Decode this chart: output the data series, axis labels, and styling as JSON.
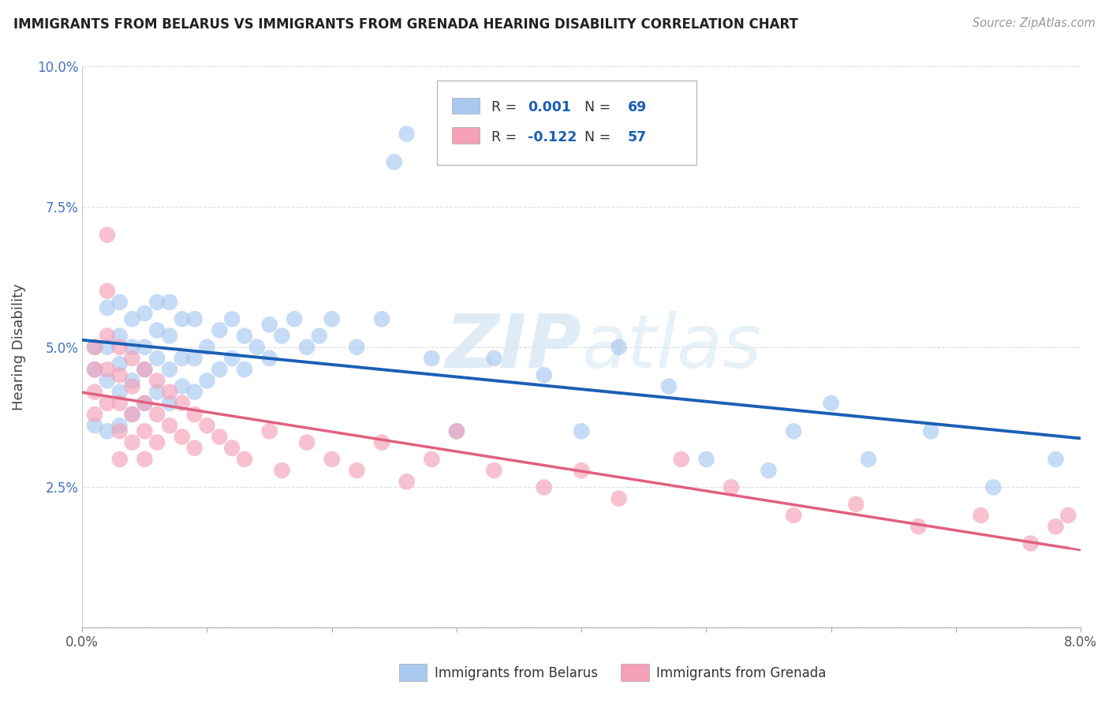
{
  "title": "IMMIGRANTS FROM BELARUS VS IMMIGRANTS FROM GRENADA HEARING DISABILITY CORRELATION CHART",
  "source": "Source: ZipAtlas.com",
  "ylabel": "Hearing Disability",
  "legend_label1": "Immigrants from Belarus",
  "legend_label2": "Immigrants from Grenada",
  "R1": 0.001,
  "N1": 69,
  "R2": -0.122,
  "N2": 57,
  "xlim": [
    0.0,
    0.08
  ],
  "ylim": [
    0.0,
    0.1
  ],
  "color_blue": "#A8C8F0",
  "color_pink": "#F4A0B8",
  "color_blue_line": "#1A5FB4",
  "color_pink_line": "#E06080",
  "watermark_zip": "ZIP",
  "watermark_atlas": "atlas",
  "blue_x": [
    0.001,
    0.001,
    0.001,
    0.002,
    0.002,
    0.002,
    0.002,
    0.003,
    0.003,
    0.003,
    0.003,
    0.003,
    0.004,
    0.004,
    0.004,
    0.004,
    0.005,
    0.005,
    0.005,
    0.005,
    0.006,
    0.006,
    0.006,
    0.006,
    0.007,
    0.007,
    0.007,
    0.007,
    0.008,
    0.008,
    0.008,
    0.009,
    0.009,
    0.009,
    0.01,
    0.01,
    0.011,
    0.011,
    0.012,
    0.012,
    0.013,
    0.013,
    0.014,
    0.015,
    0.015,
    0.016,
    0.017,
    0.018,
    0.019,
    0.02,
    0.022,
    0.024,
    0.025,
    0.026,
    0.028,
    0.03,
    0.033,
    0.037,
    0.04,
    0.043,
    0.047,
    0.05,
    0.055,
    0.057,
    0.06,
    0.063,
    0.068,
    0.073,
    0.078
  ],
  "blue_y": [
    0.036,
    0.046,
    0.05,
    0.035,
    0.044,
    0.05,
    0.057,
    0.036,
    0.042,
    0.047,
    0.052,
    0.058,
    0.038,
    0.044,
    0.05,
    0.055,
    0.04,
    0.046,
    0.05,
    0.056,
    0.042,
    0.048,
    0.053,
    0.058,
    0.04,
    0.046,
    0.052,
    0.058,
    0.043,
    0.048,
    0.055,
    0.042,
    0.048,
    0.055,
    0.044,
    0.05,
    0.046,
    0.053,
    0.048,
    0.055,
    0.046,
    0.052,
    0.05,
    0.048,
    0.054,
    0.052,
    0.055,
    0.05,
    0.052,
    0.055,
    0.05,
    0.055,
    0.083,
    0.088,
    0.048,
    0.035,
    0.048,
    0.045,
    0.035,
    0.05,
    0.043,
    0.03,
    0.028,
    0.035,
    0.04,
    0.03,
    0.035,
    0.025,
    0.03
  ],
  "pink_x": [
    0.001,
    0.001,
    0.001,
    0.001,
    0.002,
    0.002,
    0.002,
    0.002,
    0.002,
    0.003,
    0.003,
    0.003,
    0.003,
    0.003,
    0.004,
    0.004,
    0.004,
    0.004,
    0.005,
    0.005,
    0.005,
    0.005,
    0.006,
    0.006,
    0.006,
    0.007,
    0.007,
    0.008,
    0.008,
    0.009,
    0.009,
    0.01,
    0.011,
    0.012,
    0.013,
    0.015,
    0.016,
    0.018,
    0.02,
    0.022,
    0.024,
    0.026,
    0.028,
    0.03,
    0.033,
    0.037,
    0.04,
    0.043,
    0.048,
    0.052,
    0.057,
    0.062,
    0.067,
    0.072,
    0.076,
    0.078,
    0.079
  ],
  "pink_y": [
    0.05,
    0.046,
    0.042,
    0.038,
    0.06,
    0.052,
    0.046,
    0.04,
    0.07,
    0.05,
    0.045,
    0.04,
    0.035,
    0.03,
    0.048,
    0.043,
    0.038,
    0.033,
    0.046,
    0.04,
    0.035,
    0.03,
    0.044,
    0.038,
    0.033,
    0.042,
    0.036,
    0.04,
    0.034,
    0.038,
    0.032,
    0.036,
    0.034,
    0.032,
    0.03,
    0.035,
    0.028,
    0.033,
    0.03,
    0.028,
    0.033,
    0.026,
    0.03,
    0.035,
    0.028,
    0.025,
    0.028,
    0.023,
    0.03,
    0.025,
    0.02,
    0.022,
    0.018,
    0.02,
    0.015,
    0.018,
    0.02
  ]
}
